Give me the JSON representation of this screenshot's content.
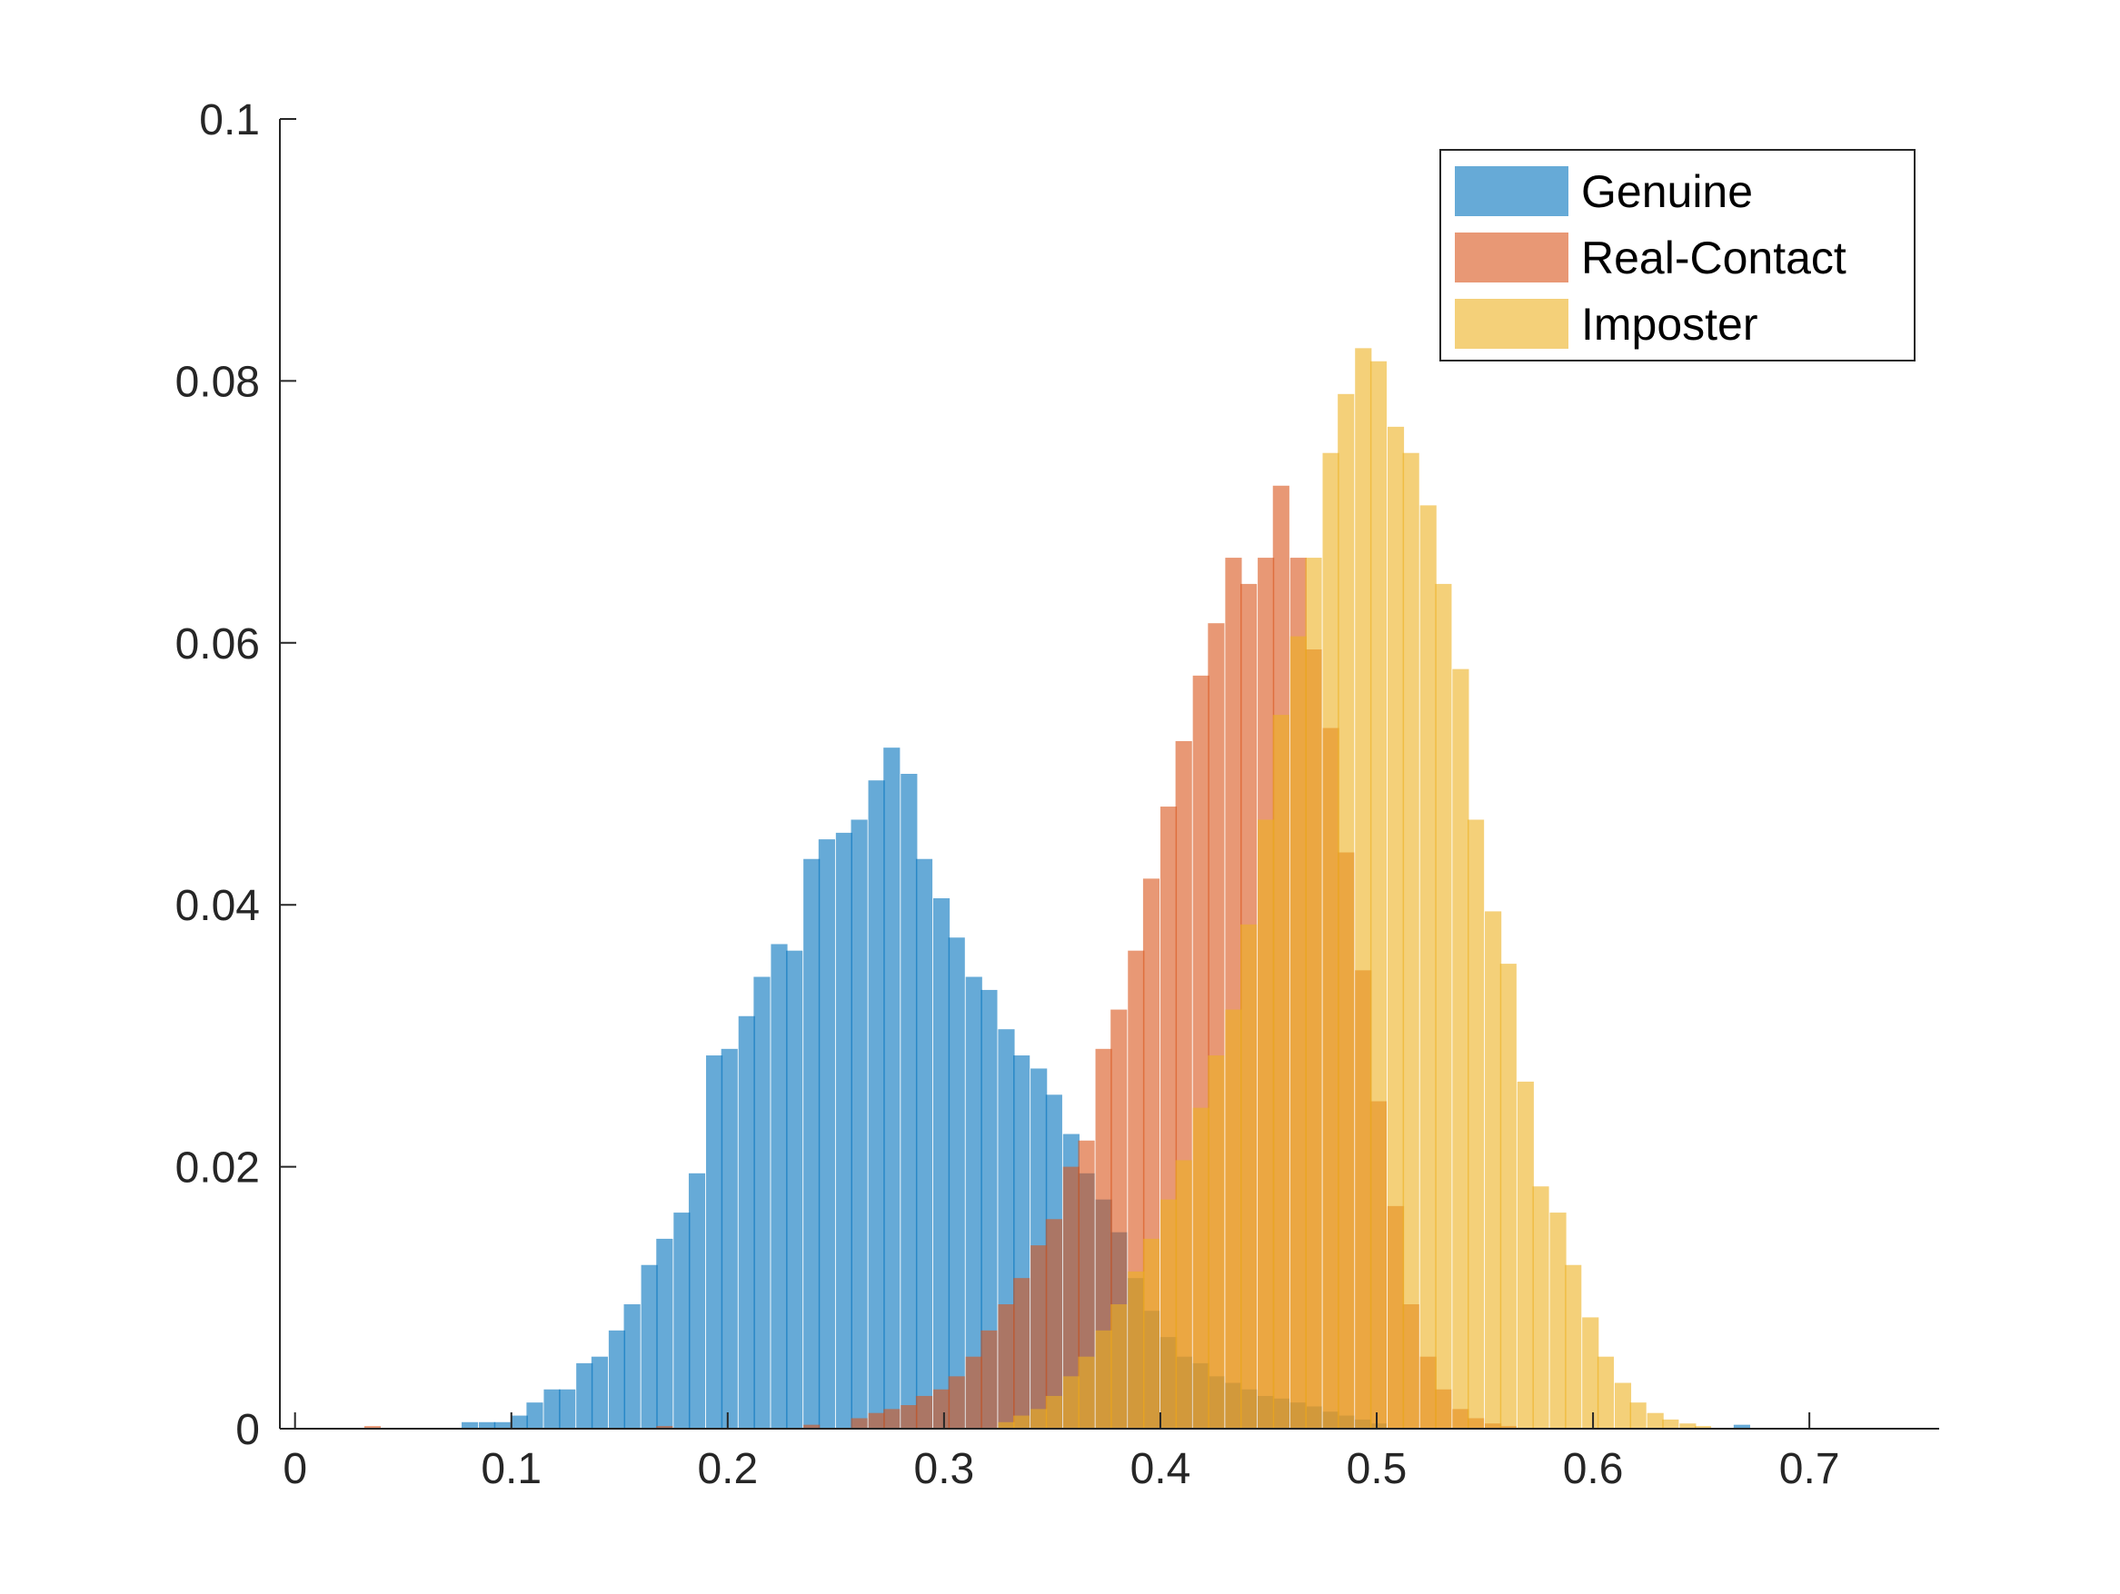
{
  "chart_data": {
    "type": "histogram",
    "title": "",
    "xlabel": "",
    "ylabel": "",
    "xlim": [
      -0.007,
      0.76
    ],
    "ylim": [
      0,
      0.1
    ],
    "xticks": [
      "0",
      "0.1",
      "0.2",
      "0.3",
      "0.4",
      "0.5",
      "0.6",
      "0.7"
    ],
    "yticks": [
      "0",
      "0.02",
      "0.04",
      "0.06",
      "0.08",
      "0.1"
    ],
    "xtick_values": [
      0,
      0.1,
      0.2,
      0.3,
      0.4,
      0.5,
      0.6,
      0.7
    ],
    "ytick_values": [
      0,
      0.02,
      0.04,
      0.06,
      0.08,
      0.1
    ],
    "grid": false,
    "legend_position": "top-right",
    "bin_width": 0.0075,
    "series": [
      {
        "name": "Genuine",
        "color": "#0072BD",
        "face_alpha": 0.6,
        "bins": [
          [
            0.077,
            0.0005
          ],
          [
            0.085,
            0.0005
          ],
          [
            0.092,
            0.0005
          ],
          [
            0.1,
            0.001
          ],
          [
            0.107,
            0.002
          ],
          [
            0.115,
            0.003
          ],
          [
            0.122,
            0.003
          ],
          [
            0.13,
            0.005
          ],
          [
            0.137,
            0.0055
          ],
          [
            0.145,
            0.0075
          ],
          [
            0.152,
            0.0095
          ],
          [
            0.16,
            0.0125
          ],
          [
            0.167,
            0.0145
          ],
          [
            0.175,
            0.0165
          ],
          [
            0.182,
            0.0195
          ],
          [
            0.19,
            0.0285
          ],
          [
            0.197,
            0.029
          ],
          [
            0.205,
            0.0315
          ],
          [
            0.212,
            0.0345
          ],
          [
            0.22,
            0.037
          ],
          [
            0.227,
            0.0365
          ],
          [
            0.235,
            0.0435
          ],
          [
            0.242,
            0.045
          ],
          [
            0.25,
            0.0455
          ],
          [
            0.257,
            0.0465
          ],
          [
            0.265,
            0.0495
          ],
          [
            0.272,
            0.052
          ],
          [
            0.28,
            0.05
          ],
          [
            0.287,
            0.0435
          ],
          [
            0.295,
            0.0405
          ],
          [
            0.302,
            0.0375
          ],
          [
            0.31,
            0.0345
          ],
          [
            0.317,
            0.0335
          ],
          [
            0.325,
            0.0305
          ],
          [
            0.332,
            0.0285
          ],
          [
            0.34,
            0.0275
          ],
          [
            0.347,
            0.0255
          ],
          [
            0.355,
            0.0225
          ],
          [
            0.362,
            0.0195
          ],
          [
            0.37,
            0.0175
          ],
          [
            0.377,
            0.015
          ],
          [
            0.385,
            0.0115
          ],
          [
            0.392,
            0.009
          ],
          [
            0.4,
            0.007
          ],
          [
            0.407,
            0.0055
          ],
          [
            0.415,
            0.005
          ],
          [
            0.422,
            0.004
          ],
          [
            0.43,
            0.0035
          ],
          [
            0.437,
            0.003
          ],
          [
            0.445,
            0.0025
          ],
          [
            0.452,
            0.0023
          ],
          [
            0.46,
            0.002
          ],
          [
            0.467,
            0.0017
          ],
          [
            0.475,
            0.0013
          ],
          [
            0.482,
            0.001
          ],
          [
            0.49,
            0.0007
          ],
          [
            0.497,
            0.0004
          ],
          [
            0.665,
            0.0003
          ]
        ]
      },
      {
        "name": "Real-Contact",
        "color": "#D95319",
        "face_alpha": 0.6,
        "bins": [
          [
            0.032,
            0.0002
          ],
          [
            0.167,
            0.0002
          ],
          [
            0.235,
            0.0003
          ],
          [
            0.257,
            0.0008
          ],
          [
            0.265,
            0.0012
          ],
          [
            0.272,
            0.0015
          ],
          [
            0.28,
            0.0018
          ],
          [
            0.287,
            0.0025
          ],
          [
            0.295,
            0.003
          ],
          [
            0.302,
            0.004
          ],
          [
            0.31,
            0.0055
          ],
          [
            0.317,
            0.0075
          ],
          [
            0.325,
            0.0095
          ],
          [
            0.332,
            0.0115
          ],
          [
            0.34,
            0.014
          ],
          [
            0.347,
            0.016
          ],
          [
            0.355,
            0.02
          ],
          [
            0.362,
            0.022
          ],
          [
            0.37,
            0.029
          ],
          [
            0.377,
            0.032
          ],
          [
            0.385,
            0.0365
          ],
          [
            0.392,
            0.042
          ],
          [
            0.4,
            0.0475
          ],
          [
            0.407,
            0.0525
          ],
          [
            0.415,
            0.0575
          ],
          [
            0.422,
            0.0615
          ],
          [
            0.43,
            0.0665
          ],
          [
            0.437,
            0.0645
          ],
          [
            0.445,
            0.0665
          ],
          [
            0.452,
            0.072
          ],
          [
            0.46,
            0.0665
          ],
          [
            0.467,
            0.0595
          ],
          [
            0.475,
            0.0535
          ],
          [
            0.482,
            0.044
          ],
          [
            0.49,
            0.035
          ],
          [
            0.497,
            0.025
          ],
          [
            0.505,
            0.017
          ],
          [
            0.512,
            0.0095
          ],
          [
            0.52,
            0.0055
          ],
          [
            0.527,
            0.003
          ],
          [
            0.535,
            0.0015
          ],
          [
            0.542,
            0.0008
          ],
          [
            0.55,
            0.0004
          ],
          [
            0.557,
            0.0002
          ]
        ]
      },
      {
        "name": "Imposter",
        "color": "#EDB120",
        "face_alpha": 0.6,
        "bins": [
          [
            0.325,
            0.0005
          ],
          [
            0.332,
            0.001
          ],
          [
            0.34,
            0.0015
          ],
          [
            0.347,
            0.0025
          ],
          [
            0.355,
            0.004
          ],
          [
            0.362,
            0.0055
          ],
          [
            0.37,
            0.0075
          ],
          [
            0.377,
            0.0095
          ],
          [
            0.385,
            0.012
          ],
          [
            0.392,
            0.0145
          ],
          [
            0.4,
            0.0175
          ],
          [
            0.407,
            0.0205
          ],
          [
            0.415,
            0.0245
          ],
          [
            0.422,
            0.0285
          ],
          [
            0.43,
            0.032
          ],
          [
            0.437,
            0.0385
          ],
          [
            0.445,
            0.0465
          ],
          [
            0.452,
            0.0545
          ],
          [
            0.46,
            0.0605
          ],
          [
            0.467,
            0.0665
          ],
          [
            0.475,
            0.0745
          ],
          [
            0.482,
            0.079
          ],
          [
            0.49,
            0.0825
          ],
          [
            0.497,
            0.0815
          ],
          [
            0.505,
            0.0765
          ],
          [
            0.512,
            0.0745
          ],
          [
            0.52,
            0.0705
          ],
          [
            0.527,
            0.0645
          ],
          [
            0.535,
            0.058
          ],
          [
            0.542,
            0.0465
          ],
          [
            0.55,
            0.0395
          ],
          [
            0.557,
            0.0355
          ],
          [
            0.565,
            0.0265
          ],
          [
            0.572,
            0.0185
          ],
          [
            0.58,
            0.0165
          ],
          [
            0.587,
            0.0125
          ],
          [
            0.595,
            0.0085
          ],
          [
            0.602,
            0.0055
          ],
          [
            0.61,
            0.0035
          ],
          [
            0.617,
            0.002
          ],
          [
            0.625,
            0.0012
          ],
          [
            0.632,
            0.0007
          ],
          [
            0.64,
            0.0004
          ],
          [
            0.647,
            0.0002
          ]
        ]
      }
    ]
  }
}
